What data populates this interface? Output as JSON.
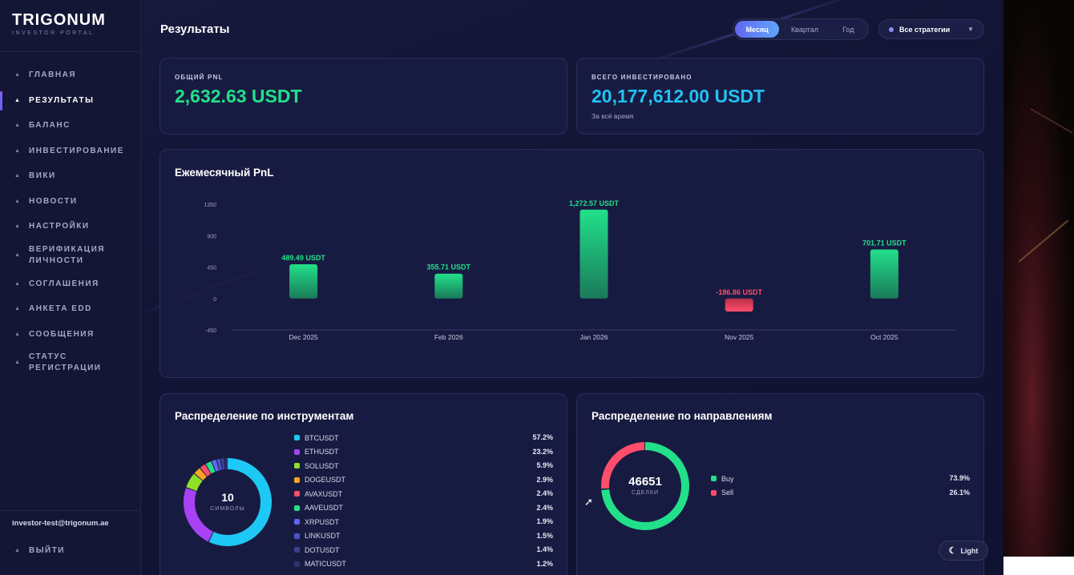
{
  "brand": {
    "name": "TRIGONUM",
    "subtitle": "INVESTOR PORTAL"
  },
  "sidebar": {
    "items": [
      {
        "label": "ГЛАВНАЯ",
        "active": false
      },
      {
        "label": "РЕЗУЛЬТАТЫ",
        "active": true
      },
      {
        "label": "БАЛАНС",
        "active": false
      },
      {
        "label": "ИНВЕСТИРОВАНИЕ",
        "active": false
      },
      {
        "label": "ВИКИ",
        "active": false
      },
      {
        "label": "НОВОСТИ",
        "active": false
      },
      {
        "label": "НАСТРОЙКИ",
        "active": false
      },
      {
        "label": "ВЕРИФИКАЦИЯ\nЛИЧНОСТИ",
        "active": false
      },
      {
        "label": "СОГЛАШЕНИЯ",
        "active": false
      },
      {
        "label": "АНКЕТА EDD",
        "active": false
      },
      {
        "label": "СООБЩЕНИЯ",
        "active": false
      },
      {
        "label": "СТАТУС\nРЕГИСТРАЦИИ",
        "active": false
      }
    ],
    "user_email": "investor-test@trigonum.ae",
    "logout_label": "ВЫЙТИ"
  },
  "header": {
    "title": "Результаты",
    "period_tabs": [
      "Месяц",
      "Квартал",
      "Год"
    ],
    "active_period": "Месяц",
    "strategy_select": "Все стратегии"
  },
  "stats": {
    "pnl_label": "ОБЩИЙ PNL",
    "pnl_value": "2,632.63 USDT",
    "invested_label": "ВСЕГО ИНВЕСТИРОВАНО",
    "invested_value": "20,177,612.00 USDT",
    "invested_sub": "За всё время"
  },
  "colors": {
    "positive": "#22e08a",
    "negative": "#ff4d6a",
    "accent": "#22c1f5",
    "brand": "#6366f1"
  },
  "monthly_chart_title": "Ежемесячный PnL",
  "instruments_title": "Распределение по инструментам",
  "directions_title": "Распределение по направлениям",
  "chart_data": [
    {
      "type": "bar",
      "title": "Ежемесячный PnL",
      "categories": [
        "Dec 2025",
        "Feb 2026",
        "Jan 2026",
        "Nov 2025",
        "Oct 2025"
      ],
      "values": [
        489.49,
        355.71,
        1272.57,
        -186.86,
        701.71
      ],
      "data_labels": [
        "489.49 USDT",
        "355.71 USDT",
        "1,272.57 USDT",
        "-186.86 USDT",
        "701.71 USDT"
      ],
      "yticks": [
        1350,
        900,
        450,
        0,
        -450
      ],
      "ylim": [
        -450,
        1350
      ]
    },
    {
      "type": "pie",
      "title": "Распределение по инструментам",
      "center_value": "10",
      "center_label": "СИМВОЛЫ",
      "categories": [
        "BTCUSDT",
        "ETHUSDT",
        "SOLUSDT",
        "DOGEUSDT",
        "AVAXUSDT",
        "AAVEUSDT",
        "XRPUSDT",
        "LINKUSDT",
        "DOTUSDT",
        "MATICUSDT"
      ],
      "values": [
        57.2,
        23.2,
        5.9,
        2.9,
        2.4,
        2.4,
        1.9,
        1.5,
        1.4,
        1.2
      ],
      "labels": [
        "57.2%",
        "23.2%",
        "5.9%",
        "2.9%",
        "2.4%",
        "2.4%",
        "1.9%",
        "1.5%",
        "1.4%",
        "1.2%"
      ],
      "colors": [
        "#1ec8f5",
        "#a742f5",
        "#8ee02a",
        "#f5a623",
        "#ff4d6a",
        "#22e08a",
        "#6366f1",
        "#4a55c8",
        "#3b3f8f",
        "#2f3270"
      ]
    },
    {
      "type": "pie",
      "title": "Распределение по направлениям",
      "center_value": "46651",
      "center_label": "СДЕЛКИ",
      "categories": [
        "Buy",
        "Sell"
      ],
      "values": [
        73.9,
        26.1
      ],
      "labels": [
        "73.9%",
        "26.1%"
      ],
      "colors": [
        "#22e08a",
        "#ff4d6a"
      ]
    }
  ],
  "theme_toggle": "Light"
}
